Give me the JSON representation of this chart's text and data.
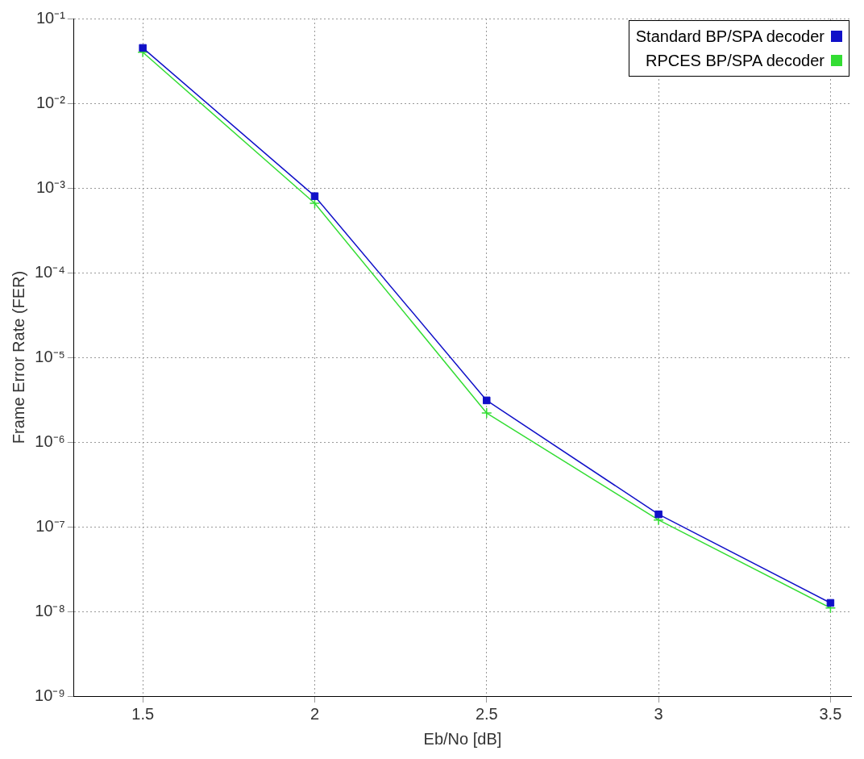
{
  "chart_data": {
    "type": "line",
    "xlabel": "Eb/No [dB]",
    "ylabel": "Frame Error Rate (FER)",
    "x": [
      1.5,
      2,
      2.5,
      3,
      3.5
    ],
    "series": [
      {
        "name": "Standard BP/SPA decoder",
        "color": "#1010c8",
        "marker": "square",
        "values": [
          0.045,
          0.0008,
          3.1e-06,
          1.4e-07,
          1.26e-08
        ]
      },
      {
        "name": "RPCES BP/SPA decoder",
        "color": "#33dd33",
        "marker": "cross",
        "values": [
          0.04,
          0.00066,
          2.2e-06,
          1.2e-07,
          1.1e-08
        ]
      }
    ],
    "log": "y",
    "xlim": [
      1.3,
      3.56
    ],
    "xticks": [
      1.5,
      2,
      2.5,
      3,
      3.5
    ],
    "ylim": [
      1e-09,
      0.1
    ],
    "yticks": [
      {
        "value": 1e-09,
        "label": "10⁻⁹"
      },
      {
        "value": 1e-08,
        "label": "10⁻⁸"
      },
      {
        "value": 1e-07,
        "label": "10⁻⁷"
      },
      {
        "value": 1e-06,
        "label": "10⁻⁶"
      },
      {
        "value": 1e-05,
        "label": "10⁻⁵"
      },
      {
        "value": 0.0001,
        "label": "10⁻⁴"
      },
      {
        "value": 0.001,
        "label": "10⁻³"
      },
      {
        "value": 0.01,
        "label": "10⁻²"
      },
      {
        "value": 0.1,
        "label": "10⁻¹"
      }
    ],
    "grid": true,
    "legend": "top right",
    "line_style": "solid"
  }
}
